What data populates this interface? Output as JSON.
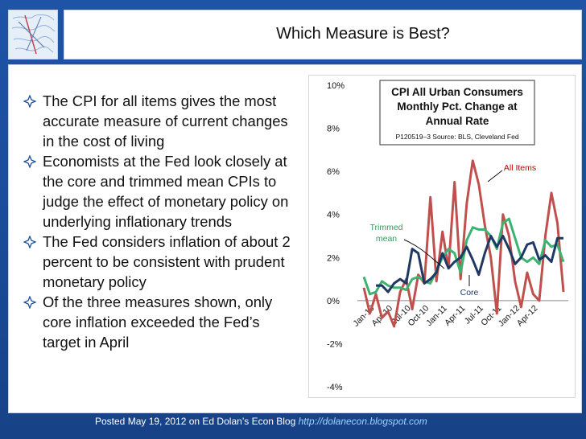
{
  "slide": {
    "title": "Which Measure is Best?",
    "bullets": [
      "The CPI for all items gives the most accurate measure of current changes in the cost of living",
      "Economists at the Fed look closely at the core and trimmed mean CPIs to judge the effect of monetary policy on underlying inflationary trends",
      "The Fed considers inflation of about 2 percent to be consistent with prudent monetary policy",
      "Of the three measures shown, only core inflation exceeded the Fed’s target in April"
    ],
    "footer_text": "Posted May 19, 2012 on Ed Dolan’s Econ Blog ",
    "footer_link": "http://dolanecon.blogspot.com",
    "bullet_icon": "hollow-diamond-icon",
    "colors": {
      "background": "#1b4d9c",
      "all_items": "#c0504d",
      "trimmed_mean": "#3cb371",
      "core": "#1f3864",
      "link": "#9fd3ff"
    }
  },
  "chart_data": {
    "type": "line",
    "title_lines": [
      "CPI All Urban Consumers",
      "Monthly Pct. Change at",
      "Annual Rate"
    ],
    "subtitle": "P120519–3 Source: BLS, Cleveland Fed",
    "ylim": [
      -4,
      10
    ],
    "yticks": [
      -4,
      -2,
      0,
      2,
      4,
      6,
      8,
      10
    ],
    "ytick_labels": [
      "-4%",
      "-2%",
      "0%",
      "2%",
      "4%",
      "6%",
      "8%",
      "10%"
    ],
    "xtick_labels": [
      "Jan-10",
      "Apr-10",
      "Jul-10",
      "Oct-10",
      "Jan-11",
      "Apr-11",
      "Jul-11",
      "Oct-11",
      "Jan-12",
      "Apr-12"
    ],
    "grid": false,
    "annotations": [
      "All Items",
      "Trimmed mean",
      "Core"
    ],
    "series": [
      {
        "name": "All Items",
        "color": "#c0504d",
        "values": [
          0.6,
          -0.6,
          0.3,
          -0.8,
          -0.5,
          -1.2,
          0.4,
          1.0,
          -0.4,
          1.2,
          0.8,
          4.8,
          0.9,
          3.2,
          1.5,
          5.5,
          1.0,
          4.5,
          6.5,
          5.4,
          3.5,
          2.0,
          -0.6,
          4.0,
          3.0,
          0.9,
          -0.3,
          1.3,
          0.3,
          0.0,
          3.0,
          5.0,
          3.6,
          0.4
        ]
      },
      {
        "name": "Trimmed mean",
        "color": "#3cb371",
        "values": [
          1.1,
          0.3,
          0.4,
          0.9,
          0.7,
          0.6,
          0.6,
          0.5,
          1.0,
          1.1,
          0.9,
          0.8,
          1.4,
          2.0,
          2.4,
          2.2,
          1.3,
          2.8,
          3.4,
          3.3,
          3.3,
          3.0,
          2.4,
          3.6,
          3.8,
          2.9,
          2.0,
          1.8,
          2.0,
          1.7,
          2.8,
          2.5,
          2.6,
          1.8
        ]
      },
      {
        "name": "Core",
        "color": "#1f3864",
        "values": [
          null,
          null,
          0.7,
          0.7,
          0.4,
          0.8,
          1.0,
          0.8,
          2.4,
          2.2,
          0.8,
          1.0,
          1.3,
          2.2,
          1.5,
          1.8,
          2.0,
          2.5,
          1.9,
          1.2,
          2.2,
          3.0,
          2.5,
          3.0,
          2.4,
          1.7,
          2.0,
          2.6,
          2.7,
          1.9,
          2.1,
          1.8,
          2.9,
          2.9
        ]
      }
    ]
  }
}
